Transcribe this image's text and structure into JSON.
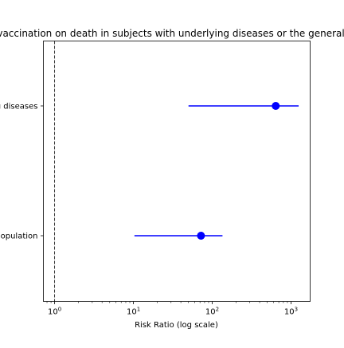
{
  "chart_data": {
    "type": "forest",
    "title": "Effect of vaccination on death in subjects with underlying diseases or the general population",
    "xlabel": "Risk Ratio (log scale)",
    "ylabel": "",
    "x_scale": "log",
    "xlim": [
      0.72,
      1750
    ],
    "x_ticks": [
      {
        "value": 1,
        "base": "10",
        "exp": "0"
      },
      {
        "value": 10,
        "base": "10",
        "exp": "1"
      },
      {
        "value": 100,
        "base": "10",
        "exp": "2"
      },
      {
        "value": 1000,
        "base": "10",
        "exp": "3"
      }
    ],
    "reference_line": {
      "x": 1,
      "style": "dashed",
      "color": "#000000"
    },
    "grid": false,
    "series": [
      {
        "color": "#0000ff",
        "points": [
          {
            "label": "Underlying diseases",
            "estimate": 640,
            "ci_lower": 50,
            "ci_upper": 1250
          },
          {
            "label": "General population",
            "estimate": 72,
            "ci_lower": 10.3,
            "ci_upper": 135
          }
        ]
      }
    ]
  }
}
